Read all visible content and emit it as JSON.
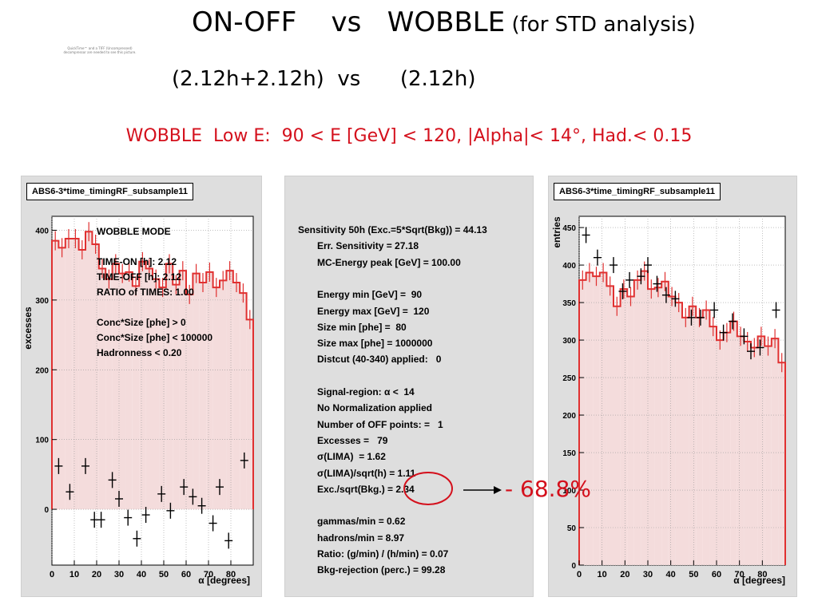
{
  "header": {
    "title_main": "ON-OFF    vs   WOBBLE",
    "title_suffix": " (for STD analysis)",
    "subtitle": "(2.12h+2.12h)  vs      (2.12h)",
    "cuts_line": "WOBBLE  Low E:  90 < E [GeV] < 120, |Alpha|< 14°, Had.< 0.15",
    "quicktime_note": "QuickTime™ and a TIFF (Uncompressed) decompressor are needed to see this picture."
  },
  "left_panel": {
    "histo_title": "ABS6-3*time_timingRF_subsample11",
    "ylabel": "excesses",
    "xlabel": "α [degrees]",
    "info_lines": [
      "WOBBLE MODE",
      "",
      "TIME-ON [h]: 2.12",
      "TIME-OFF [h]: 2.12",
      "RATIO of TIMES: 1.00",
      "",
      "Conc*Size [phe] >   0",
      "Conc*Size [phe] < 100000",
      "Hadronness < 0.20"
    ]
  },
  "stats_panel": {
    "lines": [
      {
        "text": "Sensitivity 50h (Exc.=5*Sqrt(Bkg)) = 44.13",
        "indent": false
      },
      {
        "text": "Err. Sensitivity = 27.18",
        "indent": true
      },
      {
        "text": "MC-Energy peak [GeV] = 100.00",
        "indent": true
      },
      {
        "text": "",
        "indent": true
      },
      {
        "text": "Energy min [GeV] =  90",
        "indent": true
      },
      {
        "text": "Energy max [GeV] =  120",
        "indent": true
      },
      {
        "text": "Size min [phe] =  80",
        "indent": true
      },
      {
        "text": "Size max [phe] = 1000000",
        "indent": true
      },
      {
        "text": "Distcut (40-340) applied:   0",
        "indent": true
      },
      {
        "text": "",
        "indent": true
      },
      {
        "text": "Signal-region: α <  14",
        "indent": true
      },
      {
        "text": "No Normalization applied",
        "indent": true
      },
      {
        "text": "Number of OFF points: =   1",
        "indent": true
      },
      {
        "text": "Excesses =   79",
        "indent": true
      },
      {
        "text": "σ(LIMA)  = 1.62",
        "indent": true
      },
      {
        "text": "σ(LIMA)/sqrt(h) = 1.11",
        "indent": true
      },
      {
        "text": "Exc./sqrt(Bkg.) = 2.34",
        "indent": true
      },
      {
        "text": "",
        "indent": true
      },
      {
        "text": "gammas/min = 0.62",
        "indent": true
      },
      {
        "text": "hadrons/min = 8.97",
        "indent": true
      },
      {
        "text": "Ratio: (g/min) / (h/min) = 0.07",
        "indent": true
      },
      {
        "text": "Bkg-rejection (perc.) = 99.28",
        "indent": true
      }
    ]
  },
  "right_panel": {
    "histo_title": "ABS6-3*time_timingRF_subsample11",
    "ylabel": "entries",
    "xlabel": "α [degrees]"
  },
  "annotation": {
    "percent": "- 68.8%"
  },
  "colors": {
    "accent_red": "#d4101c",
    "hist_red": "#e03030",
    "panel_gray": "#dedede"
  },
  "chart_data": [
    {
      "type": "histogram",
      "xlabel": "α [degrees]",
      "ylabel": "excesses",
      "xlim": [
        0,
        90
      ],
      "ylim": [
        -80,
        420
      ],
      "x_ticks": [
        0,
        10,
        20,
        30,
        40,
        50,
        60,
        70,
        80
      ],
      "y_ticks": [
        0,
        100,
        200,
        300,
        400
      ],
      "grid": true,
      "bin_edges": [
        0,
        3,
        6,
        9,
        12,
        15,
        18,
        21,
        24,
        27,
        30,
        33,
        36,
        39,
        42,
        45,
        48,
        51,
        54,
        57,
        60,
        63,
        66,
        69,
        72,
        75,
        78,
        81,
        84,
        87,
        90
      ],
      "series": [
        {
          "values": [
            385,
            375,
            388,
            388,
            372,
            398,
            380,
            345,
            330,
            352,
            338,
            340,
            320,
            355,
            345,
            330,
            318,
            352,
            322,
            342,
            308,
            338,
            325,
            340,
            318,
            328,
            342,
            325,
            310,
            272
          ]
        },
        {
          "x": [
            3,
            8,
            15,
            19,
            22,
            27,
            30,
            34,
            38,
            42,
            49,
            53,
            59,
            63,
            67,
            72,
            75,
            79,
            86
          ],
          "y": [
            62,
            25,
            62,
            -15,
            -15,
            42,
            15,
            -12,
            -42,
            -8,
            22,
            -2,
            32,
            18,
            5,
            -20,
            32,
            -45,
            70
          ]
        }
      ]
    },
    {
      "type": "histogram",
      "xlabel": "α [degrees]",
      "ylabel": "entries",
      "xlim": [
        0,
        90
      ],
      "ylim": [
        0,
        465
      ],
      "x_ticks": [
        0,
        10,
        20,
        30,
        40,
        50,
        60,
        70,
        80
      ],
      "y_ticks": [
        0,
        50,
        100,
        150,
        200,
        250,
        300,
        350,
        400,
        450
      ],
      "grid": true,
      "bin_edges": [
        0,
        3,
        6,
        9,
        12,
        15,
        18,
        21,
        24,
        27,
        30,
        33,
        36,
        39,
        42,
        45,
        48,
        51,
        54,
        57,
        60,
        63,
        66,
        69,
        72,
        75,
        78,
        81,
        84,
        87,
        90
      ],
      "series": [
        {
          "values": [
            380,
            390,
            385,
            390,
            372,
            345,
            368,
            358,
            380,
            392,
            368,
            370,
            378,
            358,
            350,
            330,
            345,
            330,
            340,
            318,
            300,
            310,
            325,
            305,
            298,
            290,
            305,
            292,
            302,
            270
          ]
        },
        {
          "x": [
            3,
            8,
            15,
            19,
            22,
            27,
            30,
            34,
            38,
            42,
            49,
            53,
            59,
            63,
            67,
            72,
            75,
            79,
            86
          ],
          "y": [
            440,
            410,
            400,
            365,
            380,
            385,
            400,
            375,
            360,
            355,
            330,
            330,
            340,
            310,
            325,
            305,
            285,
            290,
            340
          ]
        }
      ]
    }
  ]
}
